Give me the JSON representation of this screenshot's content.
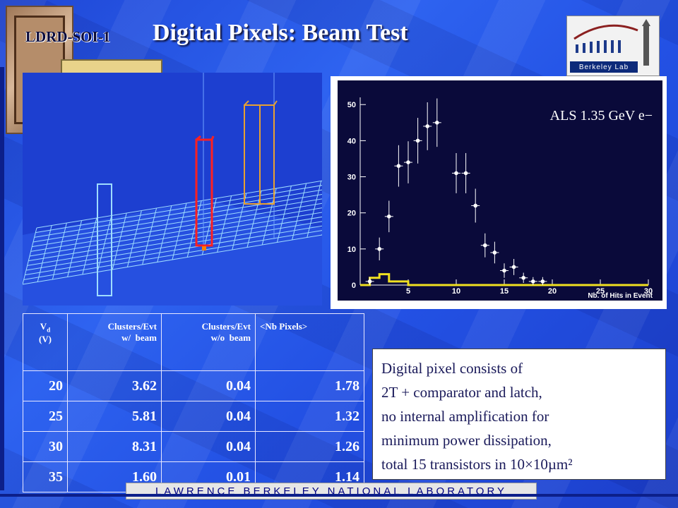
{
  "slide": {
    "tag": "LDRD-SOI-1",
    "title": "Digital Pixels: Beam Test",
    "logo_text": "Berkeley Lab",
    "footer": "Lawrence Berkeley National Laboratory"
  },
  "histogram": {
    "annotation": "ALS 1.35 GeV e−",
    "xlabel": "Nb. of Hits in Event",
    "xticks": [
      "5",
      "10",
      "15",
      "20",
      "25",
      "30"
    ],
    "yticks": [
      "0",
      "10",
      "20",
      "30",
      "40",
      "50"
    ]
  },
  "chart_data": {
    "type": "scatter",
    "xlabel": "Nb. of Hits in Event",
    "xlim": [
      0,
      30
    ],
    "ylim": [
      0,
      52
    ],
    "series": [
      {
        "points": [
          [
            1,
            1
          ],
          [
            2,
            10
          ],
          [
            3,
            19
          ],
          [
            4,
            33
          ],
          [
            5,
            34
          ],
          [
            6,
            40
          ],
          [
            7,
            44
          ],
          [
            8,
            45
          ],
          [
            10,
            31
          ],
          [
            11,
            31
          ],
          [
            12,
            22
          ],
          [
            13,
            11
          ],
          [
            14,
            9
          ],
          [
            15,
            4
          ],
          [
            16,
            5
          ],
          [
            17,
            2
          ],
          [
            18,
            1
          ],
          [
            19,
            1
          ]
        ]
      },
      {
        "step": [
          [
            0,
            0
          ],
          [
            1,
            2
          ],
          [
            2,
            3
          ],
          [
            3,
            1
          ],
          [
            4,
            1
          ],
          [
            5,
            0
          ],
          [
            30,
            0
          ]
        ],
        "color": "#f0e020"
      }
    ]
  },
  "table": {
    "headers": [
      "Vd (V)",
      "Clusters/Evt w/ beam",
      "Clusters/Evt w/o beam",
      "<Nb Pixels>"
    ],
    "rows": [
      [
        "20",
        "3.62",
        "0.04",
        "1.78"
      ],
      [
        "25",
        "5.81",
        "0.04",
        "1.32"
      ],
      [
        "30",
        "8.31",
        "0.04",
        "1.26"
      ],
      [
        "35",
        "1.60",
        "0.01",
        "1.14"
      ]
    ]
  },
  "note": {
    "lines": [
      "Digital pixel consists of",
      "2T + comparator and latch,",
      "no internal amplification for",
      "minimum power dissipation,",
      "total 15 transistors in 10×10µm²"
    ]
  },
  "colors": {
    "accent": "#1f47d6",
    "hist_bg": "#0a0a3a",
    "baseline": "#f0e020"
  }
}
